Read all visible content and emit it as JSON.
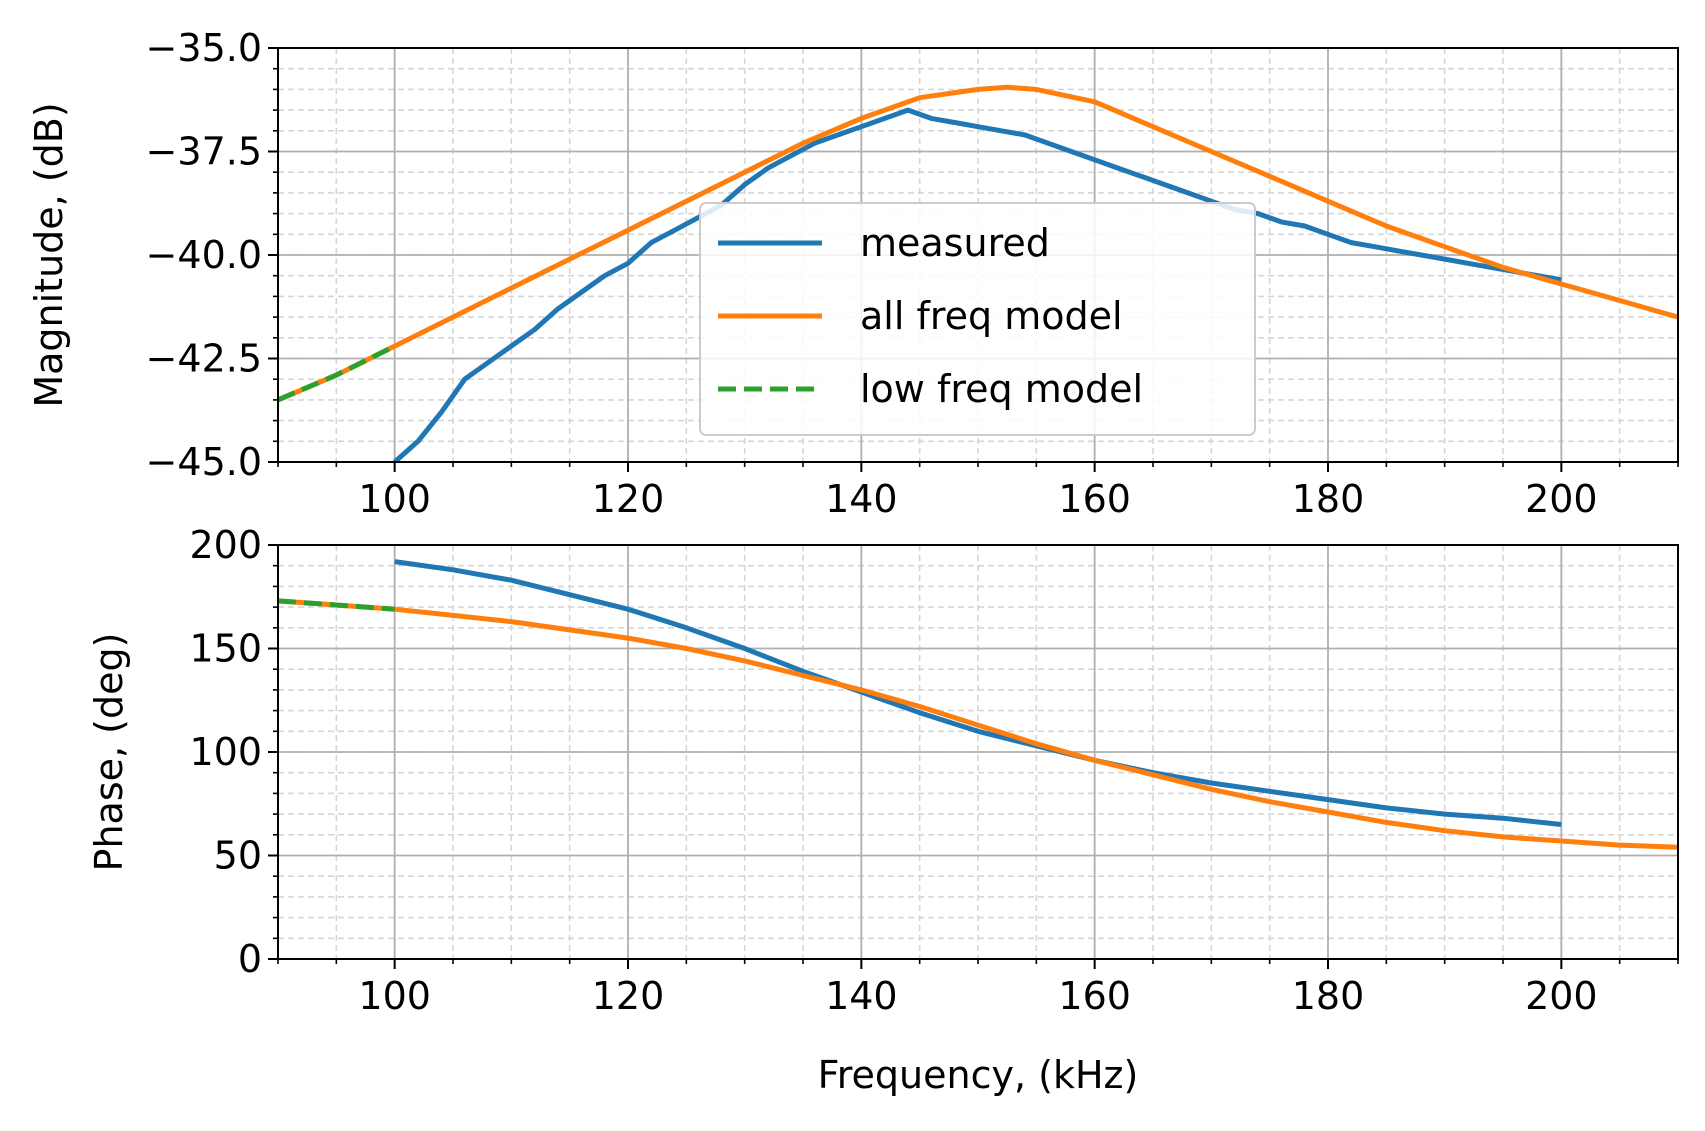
{
  "chart_data": [
    {
      "type": "line",
      "panel": "magnitude",
      "xlabel": "",
      "ylabel": "Magnitude, (dB)",
      "xlim": [
        90,
        210
      ],
      "ylim": [
        -45,
        -35
      ],
      "xticks": [
        100,
        120,
        140,
        160,
        180,
        200
      ],
      "xtick_labels": [
        "100",
        "120",
        "140",
        "160",
        "180",
        "200"
      ],
      "yticks": [
        -45,
        -42.5,
        -40,
        -37.5,
        -35
      ],
      "ytick_labels": [
        "−45.0",
        "−42.5",
        "−40.0",
        "−37.5",
        "−35.0"
      ],
      "grid": "major solid, minor dashed",
      "legend": {
        "placement": "center",
        "entries": [
          "measured",
          "all freq model",
          "low freq model"
        ]
      },
      "series": [
        {
          "name": "measured",
          "color": "#1f77b4",
          "style": "solid",
          "x": [
            100,
            102,
            104,
            106,
            108,
            110,
            112,
            114,
            116,
            118,
            120,
            122,
            124,
            126,
            128,
            130,
            132,
            134,
            136,
            138,
            140,
            142,
            144,
            146,
            148,
            150,
            152,
            154,
            156,
            158,
            160,
            162,
            164,
            166,
            168,
            170,
            172,
            174,
            176,
            178,
            180,
            182,
            184,
            186,
            188,
            190,
            192,
            194,
            196,
            198,
            200
          ],
          "y": [
            -45.0,
            -44.5,
            -43.8,
            -43.0,
            -42.6,
            -42.2,
            -41.8,
            -41.3,
            -40.9,
            -40.5,
            -40.2,
            -39.7,
            -39.4,
            -39.1,
            -38.8,
            -38.3,
            -37.9,
            -37.6,
            -37.3,
            -37.1,
            -36.9,
            -36.7,
            -36.5,
            -36.7,
            -36.8,
            -36.9,
            -37.0,
            -37.1,
            -37.3,
            -37.5,
            -37.7,
            -37.9,
            -38.1,
            -38.3,
            -38.5,
            -38.7,
            -38.9,
            -39.0,
            -39.2,
            -39.3,
            -39.5,
            -39.7,
            -39.8,
            -39.9,
            -40.0,
            -40.1,
            -40.2,
            -40.3,
            -40.4,
            -40.5,
            -40.6
          ]
        },
        {
          "name": "all freq model",
          "color": "#ff7f0e",
          "style": "solid",
          "x": [
            90,
            95,
            100,
            105,
            110,
            115,
            120,
            125,
            130,
            135,
            140,
            145,
            150,
            152.5,
            155,
            160,
            165,
            170,
            175,
            180,
            185,
            190,
            195,
            200,
            205,
            210
          ],
          "y": [
            -43.5,
            -42.9,
            -42.2,
            -41.5,
            -40.8,
            -40.1,
            -39.4,
            -38.7,
            -38.0,
            -37.3,
            -36.7,
            -36.2,
            -36.0,
            -35.95,
            -36.0,
            -36.3,
            -36.9,
            -37.5,
            -38.1,
            -38.7,
            -39.3,
            -39.8,
            -40.3,
            -40.7,
            -41.1,
            -41.5
          ]
        },
        {
          "name": "low freq model",
          "color": "#2ca02c",
          "style": "dashed",
          "x": [
            90,
            95,
            100
          ],
          "y": [
            -43.5,
            -42.9,
            -42.2
          ]
        }
      ]
    },
    {
      "type": "line",
      "panel": "phase",
      "xlabel": "Frequency, (kHz)",
      "ylabel": "Phase, (deg)",
      "xlim": [
        90,
        210
      ],
      "ylim": [
        0,
        200
      ],
      "xticks": [
        100,
        120,
        140,
        160,
        180,
        200
      ],
      "xtick_labels": [
        "100",
        "120",
        "140",
        "160",
        "180",
        "200"
      ],
      "yticks": [
        0,
        50,
        100,
        150,
        200
      ],
      "ytick_labels": [
        "0",
        "50",
        "100",
        "150",
        "200"
      ],
      "grid": "major solid, minor dashed",
      "series": [
        {
          "name": "measured",
          "color": "#1f77b4",
          "style": "solid",
          "x": [
            100,
            105,
            110,
            115,
            120,
            125,
            130,
            135,
            140,
            145,
            150,
            155,
            160,
            165,
            170,
            175,
            180,
            185,
            190,
            195,
            200
          ],
          "y": [
            192,
            188,
            183,
            176,
            169,
            160,
            150,
            139,
            129,
            119,
            110,
            103,
            96,
            90,
            85,
            81,
            77,
            73,
            70,
            68,
            65
          ]
        },
        {
          "name": "all freq model",
          "color": "#ff7f0e",
          "style": "solid",
          "x": [
            90,
            95,
            100,
            105,
            110,
            115,
            120,
            125,
            130,
            135,
            140,
            145,
            150,
            155,
            160,
            165,
            170,
            175,
            180,
            185,
            190,
            195,
            200,
            205,
            210
          ],
          "y": [
            173,
            171,
            169,
            166,
            163,
            159,
            155,
            150,
            144,
            137,
            130,
            122,
            113,
            104,
            96,
            89,
            82,
            76,
            71,
            66,
            62,
            59,
            57,
            55,
            54
          ]
        },
        {
          "name": "low freq model",
          "color": "#2ca02c",
          "style": "dashed",
          "x": [
            90,
            95,
            100
          ],
          "y": [
            173,
            171,
            169
          ]
        }
      ]
    }
  ]
}
